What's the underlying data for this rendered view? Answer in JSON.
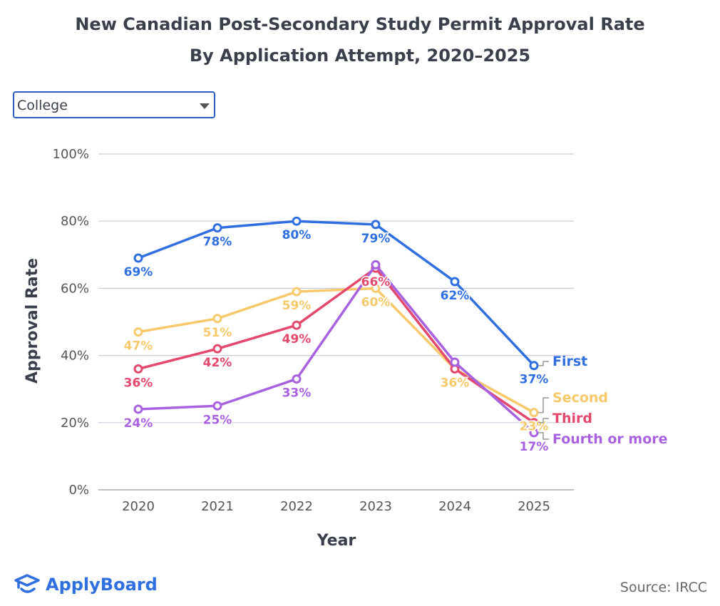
{
  "title_line1": "New Canadian Post-Secondary Study Permit Approval Rate",
  "title_line2": "By Application Attempt, 2020–2025",
  "dropdown": {
    "selected": "College"
  },
  "logo_text": "ApplyBoard",
  "source": "Source: IRCC",
  "chart_data": {
    "type": "line",
    "xlabel": "Year",
    "ylabel": "Approval Rate",
    "categories": [
      "2020",
      "2021",
      "2022",
      "2023",
      "2024",
      "2025"
    ],
    "ylim": [
      0,
      100
    ],
    "yticks": [
      "0%",
      "20%",
      "40%",
      "60%",
      "80%",
      "100%"
    ],
    "grid": true,
    "legend": "end-of-line labels",
    "series": [
      {
        "name": "First",
        "color": "#2f6fe0",
        "values": [
          69,
          78,
          80,
          79,
          62,
          37
        ],
        "labels": [
          "69%",
          "78%",
          "80%",
          "79%",
          "62%",
          "37%"
        ]
      },
      {
        "name": "Second",
        "color": "#f7c96a",
        "values": [
          47,
          51,
          59,
          60,
          36,
          23
        ],
        "labels": [
          "47%",
          "51%",
          "59%",
          "60%",
          "36%",
          "23%"
        ]
      },
      {
        "name": "Third",
        "color": "#e4486c",
        "values": [
          36,
          42,
          49,
          66,
          36,
          20
        ],
        "labels": [
          "36%",
          "42%",
          "49%",
          "66%",
          "",
          ""
        ]
      },
      {
        "name": "Fourth or more",
        "color": "#a862e0",
        "values": [
          24,
          25,
          33,
          67,
          38,
          17
        ],
        "labels": [
          "24%",
          "25%",
          "33%",
          "",
          "",
          "17%"
        ]
      }
    ]
  }
}
